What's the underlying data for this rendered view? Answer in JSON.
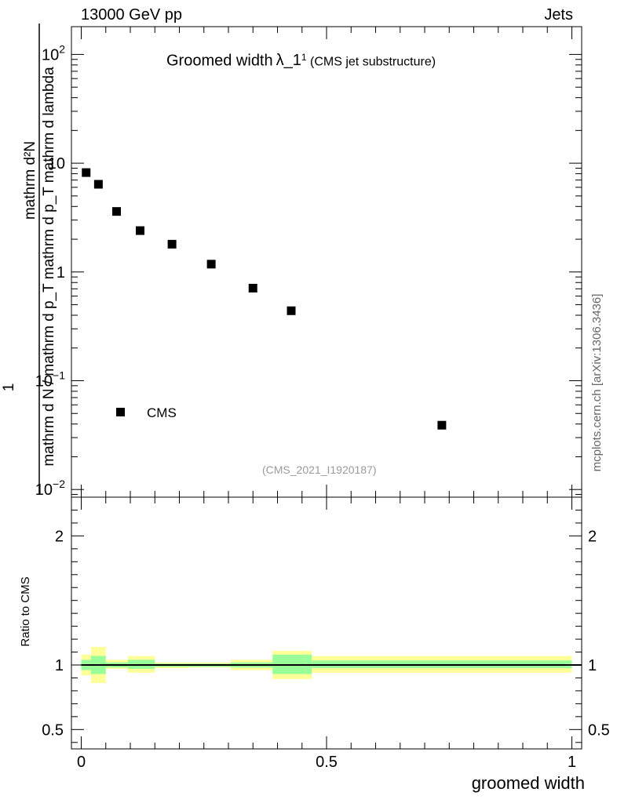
{
  "header": {
    "energy_label": "13000 GeV pp",
    "process_label": "Jets"
  },
  "side_label": "mcplots.cern.ch [arXiv:1306.3436]",
  "colors": {
    "marker": "#000000",
    "band_inner": "#99ff99",
    "band_outer": "#ffff99",
    "watermark": "#9a9a9a"
  },
  "chart_data": [
    {
      "type": "scatter",
      "title": "Groomed width",
      "title_symbol": "λ_1",
      "title_superscript": "1",
      "title_note": "(CMS jet substructure)",
      "analysis_tag": "(CMS_2021_I1920187)",
      "ylabel_numerator": "mathrm d²N",
      "ylabel_denominator": "mathrm d N / mathrm d p_T mathrm d p_T mathrm d lambda",
      "ylabel_prefix": "1",
      "yscale": "log",
      "ylim": [
        0.0085,
        180
      ],
      "xlim": [
        -0.02,
        1.02
      ],
      "y_ticks": [
        {
          "value": 0.01,
          "label": "10",
          "exp": "−2"
        },
        {
          "value": 0.1,
          "label": "10",
          "exp": "−1"
        },
        {
          "value": 1,
          "label": "1",
          "exp": ""
        },
        {
          "value": 10,
          "label": "10",
          "exp": ""
        },
        {
          "value": 100,
          "label": "10",
          "exp": "2"
        }
      ],
      "legend": {
        "entries": [
          "CMS"
        ],
        "placement": "lower-left"
      },
      "series": [
        {
          "name": "CMS",
          "marker": "square",
          "points": [
            {
              "x": 0.01,
              "y": 8.2
            },
            {
              "x": 0.035,
              "y": 6.4
            },
            {
              "x": 0.072,
              "y": 3.6
            },
            {
              "x": 0.12,
              "y": 2.4
            },
            {
              "x": 0.185,
              "y": 1.8
            },
            {
              "x": 0.265,
              "y": 1.18
            },
            {
              "x": 0.35,
              "y": 0.71
            },
            {
              "x": 0.428,
              "y": 0.44
            },
            {
              "x": 0.735,
              "y": 0.039
            }
          ]
        }
      ]
    },
    {
      "type": "area",
      "ylabel": "Ratio to CMS",
      "xlabel": "groomed width",
      "xlim": [
        -0.02,
        1.02
      ],
      "ylim": [
        0.35,
        2.3
      ],
      "x_ticks": [
        {
          "value": 0,
          "label": "0"
        },
        {
          "value": 0.5,
          "label": "0.5"
        },
        {
          "value": 1,
          "label": "1"
        }
      ],
      "y_ticks": [
        {
          "value": 0.5,
          "label": "0.5"
        },
        {
          "value": 1,
          "label": "1"
        },
        {
          "value": 2,
          "label": "2"
        }
      ],
      "reference_line": 1,
      "bins": [
        {
          "x0": 0.0,
          "x1": 0.02,
          "inner": [
            0.96,
            1.04
          ],
          "outer": [
            0.92,
            1.08
          ]
        },
        {
          "x0": 0.02,
          "x1": 0.05,
          "inner": [
            0.93,
            1.07
          ],
          "outer": [
            0.86,
            1.14
          ]
        },
        {
          "x0": 0.05,
          "x1": 0.095,
          "inner": [
            0.98,
            1.02
          ],
          "outer": [
            0.97,
            1.04
          ]
        },
        {
          "x0": 0.095,
          "x1": 0.15,
          "inner": [
            0.97,
            1.04
          ],
          "outer": [
            0.94,
            1.07
          ]
        },
        {
          "x0": 0.15,
          "x1": 0.22,
          "inner": [
            0.985,
            1.01
          ],
          "outer": [
            0.975,
            1.02
          ]
        },
        {
          "x0": 0.22,
          "x1": 0.305,
          "inner": [
            0.985,
            1.01
          ],
          "outer": [
            0.98,
            1.02
          ]
        },
        {
          "x0": 0.305,
          "x1": 0.39,
          "inner": [
            0.98,
            1.02
          ],
          "outer": [
            0.96,
            1.04
          ]
        },
        {
          "x0": 0.39,
          "x1": 0.47,
          "inner": [
            0.93,
            1.08
          ],
          "outer": [
            0.89,
            1.11
          ]
        },
        {
          "x0": 0.47,
          "x1": 1.0,
          "inner": [
            0.975,
            1.035
          ],
          "outer": [
            0.94,
            1.07
          ]
        }
      ]
    }
  ]
}
